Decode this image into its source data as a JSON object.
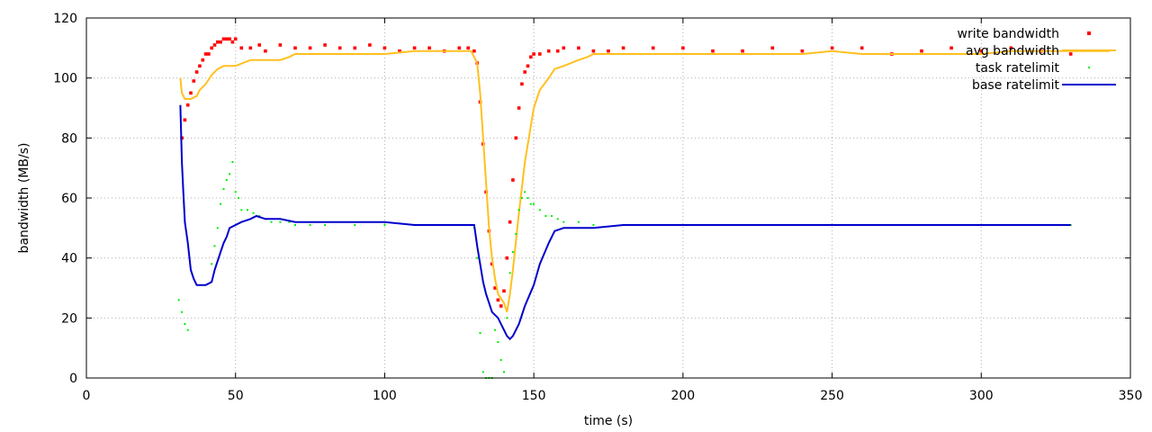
{
  "chart_data": {
    "type": "line",
    "title": "",
    "xlabel": "time (s)",
    "ylabel": "bandwidth (MB/s)",
    "xlim": [
      0,
      350
    ],
    "ylim": [
      0,
      120
    ],
    "xticks": [
      0,
      50,
      100,
      150,
      200,
      250,
      300,
      350
    ],
    "yticks": [
      0,
      20,
      40,
      60,
      80,
      100,
      120
    ],
    "grid": true,
    "legend_position": "top-right",
    "series": [
      {
        "name": "write bandwidth",
        "style": "points",
        "color": "#ff0000",
        "x": [
          32,
          33,
          34,
          35,
          36,
          37,
          38,
          39,
          40,
          41,
          42,
          43,
          44,
          45,
          46,
          47,
          48,
          49,
          50,
          52,
          55,
          58,
          60,
          65,
          70,
          75,
          80,
          85,
          90,
          95,
          100,
          105,
          110,
          115,
          120,
          125,
          128,
          130,
          131,
          132,
          133,
          134,
          135,
          136,
          137,
          138,
          139,
          140,
          141,
          142,
          143,
          144,
          145,
          146,
          147,
          148,
          149,
          150,
          152,
          155,
          158,
          160,
          165,
          170,
          175,
          180,
          190,
          200,
          210,
          220,
          230,
          240,
          250,
          260,
          270,
          280,
          290,
          300,
          310,
          320,
          330
        ],
        "y": [
          80,
          86,
          91,
          95,
          99,
          102,
          104,
          106,
          108,
          108,
          110,
          111,
          112,
          112,
          113,
          113,
          113,
          112,
          113,
          110,
          110,
          111,
          109,
          111,
          110,
          110,
          111,
          110,
          110,
          111,
          110,
          109,
          110,
          110,
          109,
          110,
          110,
          109,
          105,
          92,
          78,
          62,
          49,
          38,
          30,
          26,
          24,
          29,
          40,
          52,
          66,
          80,
          90,
          98,
          102,
          104,
          107,
          108,
          108,
          109,
          109,
          110,
          110,
          109,
          109,
          110,
          110,
          110,
          109,
          109,
          110,
          109,
          110,
          110,
          108,
          109,
          110,
          109,
          110,
          109,
          108
        ]
      },
      {
        "name": "avg bandwidth",
        "style": "line",
        "color": "#ffc020",
        "x": [
          31.5,
          32,
          33,
          35,
          37,
          38,
          40,
          42,
          44,
          46,
          48,
          50,
          55,
          60,
          65,
          68,
          70,
          80,
          90,
          100,
          110,
          120,
          125,
          129,
          131,
          132,
          133,
          134,
          135,
          136,
          137,
          138,
          140,
          141,
          142,
          143,
          145,
          147,
          149,
          150,
          152,
          155,
          157,
          160,
          165,
          168,
          170,
          180,
          190,
          200,
          210,
          220,
          230,
          240,
          250,
          260,
          270,
          280,
          290,
          300,
          310,
          320,
          330,
          340,
          343
        ],
        "y": [
          100,
          95,
          93,
          93,
          94,
          96,
          98,
          101,
          103,
          104,
          104,
          104,
          106,
          106,
          106,
          107,
          108,
          108,
          108,
          108,
          109,
          109,
          109,
          109,
          105,
          95,
          80,
          65,
          50,
          40,
          33,
          28,
          25,
          22,
          28,
          36,
          55,
          72,
          84,
          90,
          96,
          100,
          103,
          104,
          106,
          107,
          108,
          108,
          108,
          108,
          108,
          108,
          108,
          108,
          109,
          108,
          108,
          108,
          108,
          108,
          109,
          109,
          109,
          109,
          109
        ]
      },
      {
        "name": "task ratelimit",
        "style": "dots",
        "color": "#00ee00",
        "x": [
          31,
          32,
          33,
          34,
          42,
          43,
          44,
          45,
          46,
          47,
          48,
          49,
          50,
          51,
          52,
          54,
          56,
          58,
          60,
          62,
          65,
          68,
          70,
          75,
          80,
          90,
          100,
          110,
          120,
          125,
          130,
          131,
          132,
          133,
          134,
          135,
          136,
          137,
          138,
          139,
          140,
          141,
          142,
          143,
          144,
          145,
          146,
          147,
          148,
          149,
          150,
          152,
          154,
          156,
          158,
          160,
          165,
          170,
          180,
          190,
          200,
          210,
          220,
          230,
          240,
          250,
          260,
          270,
          280,
          290,
          300,
          310,
          320,
          330
        ],
        "y": [
          26,
          22,
          18,
          16,
          38,
          44,
          50,
          58,
          63,
          66,
          68,
          72,
          62,
          60,
          56,
          56,
          55,
          54,
          53,
          52,
          52,
          52,
          51,
          51,
          51,
          51,
          51,
          51,
          51,
          51,
          50,
          40,
          15,
          2,
          0,
          0,
          0,
          16,
          12,
          6,
          2,
          20,
          35,
          42,
          48,
          56,
          60,
          62,
          60,
          58,
          58,
          56,
          54,
          54,
          53,
          52,
          52,
          51,
          51,
          51,
          51,
          51,
          51,
          51,
          51,
          51,
          51,
          51,
          51,
          51,
          51,
          51,
          51,
          51
        ]
      },
      {
        "name": "base ratelimit",
        "style": "line",
        "color": "#0000cc",
        "x": [
          31.5,
          32,
          32.5,
          33,
          34,
          35,
          36,
          37,
          38,
          40,
          42,
          43,
          44,
          45,
          46,
          47,
          48,
          50,
          52,
          55,
          57,
          60,
          65,
          70,
          80,
          90,
          100,
          110,
          120,
          125,
          130,
          131,
          132,
          133,
          134,
          135,
          136,
          138,
          140,
          141,
          142,
          143,
          145,
          147,
          150,
          152,
          155,
          157,
          160,
          170,
          180,
          190,
          200,
          210,
          220,
          230,
          240,
          250,
          260,
          270,
          280,
          290,
          300,
          310,
          320,
          330
        ],
        "y": [
          91,
          72,
          62,
          52,
          45,
          36,
          33,
          31,
          31,
          31,
          32,
          36,
          39,
          42,
          45,
          47,
          50,
          51,
          52,
          53,
          54,
          53,
          53,
          52,
          52,
          52,
          52,
          51,
          51,
          51,
          51,
          44,
          38,
          32,
          28,
          25,
          22,
          20,
          16,
          14,
          13,
          14,
          18,
          24,
          31,
          38,
          45,
          49,
          50,
          50,
          51,
          51,
          51,
          51,
          51,
          51,
          51,
          51,
          51,
          51,
          51,
          51,
          51,
          51,
          51,
          51
        ]
      }
    ]
  }
}
